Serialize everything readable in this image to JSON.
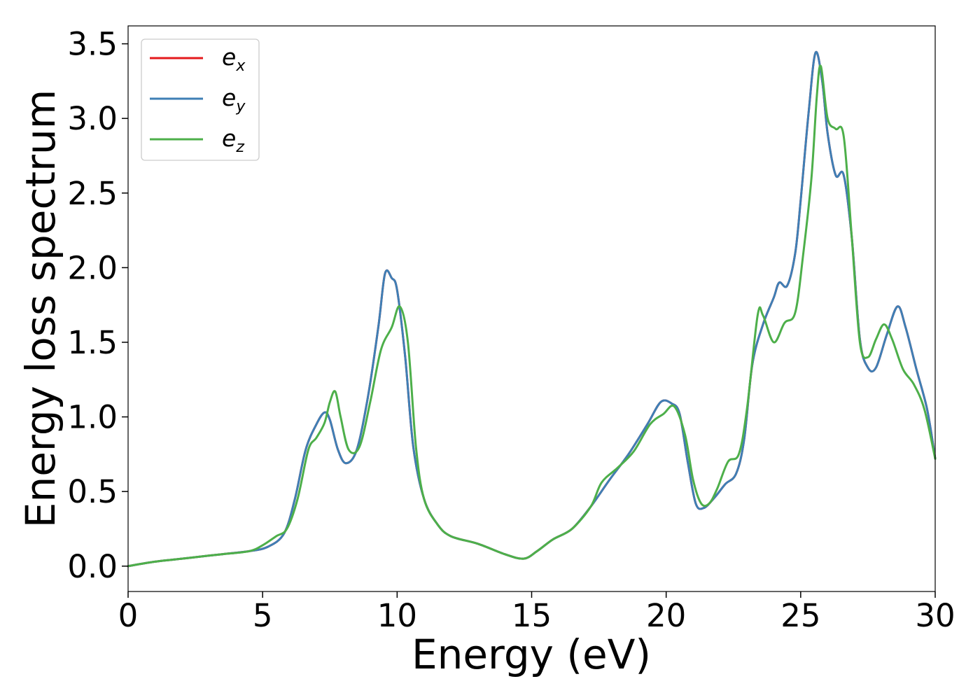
{
  "chart_data": {
    "type": "line",
    "xlabel": "Energy (eV)",
    "ylabel": "Energy loss spectrum",
    "xlim": [
      0,
      30
    ],
    "ylim": [
      -0.17,
      3.62
    ],
    "xticks": [
      0,
      5,
      10,
      15,
      20,
      25,
      30
    ],
    "xtick_labels": [
      "0",
      "5",
      "10",
      "15",
      "20",
      "25",
      "30"
    ],
    "yticks": [
      0.0,
      0.5,
      1.0,
      1.5,
      2.0,
      2.5,
      3.0,
      3.5
    ],
    "ytick_labels": [
      "0.0",
      "0.5",
      "1.0",
      "1.5",
      "2.0",
      "2.5",
      "3.0",
      "3.5"
    ],
    "grid": false,
    "legend": {
      "position": "top-left"
    },
    "series": [
      {
        "name": "e_x",
        "legend_base": "e",
        "legend_sub": "x",
        "color": "#e41a1c",
        "x": [
          0,
          1,
          2,
          3,
          3.5,
          4.5,
          5.2,
          5.8,
          6.2,
          6.6,
          7.0,
          7.3,
          7.5,
          7.8,
          8.1,
          8.5,
          8.9,
          9.3,
          9.55,
          9.8,
          10.0,
          10.3,
          10.6,
          11.0,
          11.5,
          12.0,
          13.0,
          14.0,
          14.7,
          15.2,
          15.8,
          16.5,
          17.2,
          17.9,
          18.6,
          19.3,
          19.8,
          20.2,
          20.5,
          20.8,
          21.1,
          21.4,
          21.8,
          22.2,
          22.6,
          22.9,
          23.2,
          23.6,
          24.0,
          24.2,
          24.5,
          24.8,
          25.0,
          25.3,
          25.55,
          25.8,
          26.0,
          26.3,
          26.6,
          26.9,
          27.2,
          27.5,
          27.8,
          28.2,
          28.6,
          28.9,
          29.3,
          29.7,
          30.0
        ],
        "y": [
          0.0,
          0.03,
          0.05,
          0.07,
          0.08,
          0.1,
          0.13,
          0.22,
          0.45,
          0.78,
          0.95,
          1.03,
          0.98,
          0.78,
          0.69,
          0.78,
          1.12,
          1.6,
          1.96,
          1.93,
          1.85,
          1.4,
          0.8,
          0.45,
          0.28,
          0.2,
          0.15,
          0.08,
          0.05,
          0.1,
          0.18,
          0.25,
          0.4,
          0.58,
          0.75,
          0.95,
          1.1,
          1.09,
          1.02,
          0.7,
          0.42,
          0.39,
          0.46,
          0.55,
          0.62,
          0.85,
          1.35,
          1.62,
          1.8,
          1.9,
          1.88,
          2.1,
          2.45,
          3.05,
          3.44,
          3.25,
          2.9,
          2.62,
          2.62,
          2.2,
          1.52,
          1.33,
          1.33,
          1.55,
          1.74,
          1.6,
          1.32,
          1.05,
          0.72
        ]
      },
      {
        "name": "e_y",
        "legend_base": "e",
        "legend_sub": "y",
        "color": "#3f7fb5",
        "x": [
          0,
          1,
          2,
          3,
          3.5,
          4.5,
          5.2,
          5.8,
          6.2,
          6.6,
          7.0,
          7.3,
          7.5,
          7.8,
          8.1,
          8.5,
          8.9,
          9.3,
          9.55,
          9.8,
          10.0,
          10.3,
          10.6,
          11.0,
          11.5,
          12.0,
          13.0,
          14.0,
          14.7,
          15.2,
          15.8,
          16.5,
          17.2,
          17.9,
          18.6,
          19.3,
          19.8,
          20.2,
          20.5,
          20.8,
          21.1,
          21.4,
          21.8,
          22.2,
          22.6,
          22.9,
          23.2,
          23.6,
          24.0,
          24.2,
          24.5,
          24.8,
          25.0,
          25.3,
          25.55,
          25.8,
          26.0,
          26.3,
          26.6,
          26.9,
          27.2,
          27.5,
          27.8,
          28.2,
          28.6,
          28.9,
          29.3,
          29.7,
          30.0
        ],
        "y": [
          0.0,
          0.03,
          0.05,
          0.07,
          0.08,
          0.1,
          0.13,
          0.22,
          0.45,
          0.78,
          0.95,
          1.03,
          0.98,
          0.78,
          0.69,
          0.78,
          1.12,
          1.6,
          1.96,
          1.93,
          1.85,
          1.4,
          0.8,
          0.45,
          0.28,
          0.2,
          0.15,
          0.08,
          0.05,
          0.1,
          0.18,
          0.25,
          0.4,
          0.58,
          0.75,
          0.95,
          1.1,
          1.09,
          1.02,
          0.7,
          0.42,
          0.39,
          0.46,
          0.55,
          0.62,
          0.85,
          1.35,
          1.62,
          1.8,
          1.9,
          1.88,
          2.1,
          2.45,
          3.05,
          3.44,
          3.25,
          2.9,
          2.62,
          2.62,
          2.2,
          1.52,
          1.33,
          1.33,
          1.55,
          1.74,
          1.6,
          1.32,
          1.05,
          0.72
        ]
      },
      {
        "name": "e_z",
        "legend_base": "e",
        "legend_sub": "z",
        "color": "#4daf4a",
        "x": [
          0,
          1,
          2,
          3,
          3.5,
          4.5,
          5.0,
          5.5,
          5.9,
          6.3,
          6.7,
          7.0,
          7.3,
          7.5,
          7.7,
          7.9,
          8.2,
          8.6,
          9.0,
          9.4,
          9.8,
          10.1,
          10.4,
          10.7,
          11.0,
          11.5,
          12.0,
          13.0,
          14.0,
          14.7,
          15.2,
          15.8,
          16.5,
          17.2,
          17.6,
          18.2,
          18.8,
          19.4,
          19.9,
          20.3,
          20.7,
          21.0,
          21.3,
          21.6,
          21.9,
          22.3,
          22.7,
          23.0,
          23.4,
          23.6,
          24.0,
          24.4,
          24.8,
          25.1,
          25.4,
          25.6,
          25.75,
          26.0,
          26.3,
          26.6,
          26.9,
          27.2,
          27.5,
          27.8,
          28.1,
          28.4,
          28.8,
          29.2,
          29.6,
          30.0
        ],
        "y": [
          0.0,
          0.03,
          0.05,
          0.07,
          0.08,
          0.1,
          0.14,
          0.2,
          0.25,
          0.45,
          0.78,
          0.86,
          0.96,
          1.1,
          1.17,
          1.0,
          0.78,
          0.8,
          1.1,
          1.45,
          1.6,
          1.74,
          1.5,
          0.8,
          0.45,
          0.28,
          0.2,
          0.15,
          0.08,
          0.05,
          0.1,
          0.18,
          0.25,
          0.4,
          0.56,
          0.66,
          0.77,
          0.95,
          1.02,
          1.07,
          0.88,
          0.58,
          0.42,
          0.42,
          0.52,
          0.7,
          0.75,
          1.05,
          1.68,
          1.68,
          1.5,
          1.63,
          1.7,
          2.1,
          2.6,
          3.15,
          3.35,
          3.0,
          2.93,
          2.88,
          2.2,
          1.5,
          1.4,
          1.52,
          1.62,
          1.52,
          1.32,
          1.22,
          1.05,
          0.72
        ]
      }
    ]
  }
}
